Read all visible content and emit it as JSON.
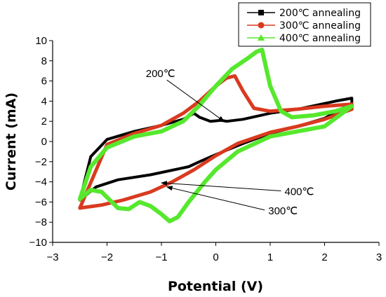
{
  "chart_data": {
    "type": "line",
    "xlabel": "Potential (V)",
    "ylabel": "Current (mA)",
    "xlim": [
      -3,
      3
    ],
    "ylim": [
      -10,
      10
    ],
    "xticks": [
      "−3",
      "−2",
      "−1",
      "0",
      "1",
      "2",
      "3"
    ],
    "yticks": [
      "−10",
      "−8",
      "−6",
      "−4",
      "−2",
      "0",
      "2",
      "4",
      "6",
      "8",
      "10"
    ],
    "grid": false,
    "legend_position": "top-right",
    "series": [
      {
        "name": "200℃ annealing",
        "color": "#000000",
        "marker": "square",
        "x": [
          -2.5,
          -2.2,
          -1.8,
          -1.2,
          -0.5,
          -0.3,
          0.0,
          0.5,
          1.0,
          1.5,
          2.0,
          2.5,
          2.5,
          2.2,
          1.5,
          1.0,
          0.5,
          0.2,
          0.1,
          -0.1,
          -0.3,
          -0.4,
          -0.6,
          -1.0,
          -1.5,
          -2.0,
          -2.3,
          -2.5
        ],
        "y": [
          -5.8,
          -4.5,
          -3.8,
          -3.3,
          -2.5,
          -2.0,
          -1.3,
          -0.2,
          0.8,
          1.5,
          2.3,
          3.8,
          4.3,
          4.0,
          3.2,
          2.8,
          2.2,
          2.0,
          2.1,
          2.0,
          2.4,
          2.8,
          2.2,
          1.6,
          1.0,
          0.2,
          -1.5,
          -5.8
        ]
      },
      {
        "name": "300℃ annealing",
        "color": "#d93a1f",
        "marker": "circle",
        "x": [
          -2.5,
          -2.1,
          -1.7,
          -1.2,
          -0.8,
          -0.4,
          0.0,
          0.4,
          1.0,
          1.5,
          2.0,
          2.5,
          2.5,
          2.0,
          1.5,
          1.0,
          0.7,
          0.5,
          0.35,
          0.2,
          0.0,
          -0.3,
          -0.6,
          -1.0,
          -1.5,
          -2.0,
          -2.5
        ],
        "y": [
          -6.6,
          -6.3,
          -5.8,
          -5.0,
          -4.0,
          -2.8,
          -1.4,
          -0.2,
          0.9,
          1.5,
          2.2,
          3.2,
          3.7,
          3.5,
          3.2,
          3.0,
          3.3,
          5.0,
          6.5,
          6.3,
          5.5,
          4.0,
          2.8,
          1.6,
          0.8,
          -0.3,
          -6.6
        ]
      },
      {
        "name": "400℃ annealing",
        "color": "#56e82d",
        "marker": "triangle",
        "x": [
          -2.5,
          -2.3,
          -2.1,
          -1.8,
          -1.6,
          -1.4,
          -1.2,
          -1.0,
          -0.85,
          -0.7,
          -0.5,
          -0.2,
          0.0,
          0.4,
          1.0,
          1.5,
          2.0,
          2.5,
          2.5,
          2.2,
          1.8,
          1.4,
          1.2,
          1.0,
          0.85,
          0.75,
          0.6,
          0.3,
          0.0,
          -0.3,
          -0.6,
          -1.0,
          -1.5,
          -2.0,
          -2.3,
          -2.5
        ],
        "y": [
          -5.7,
          -4.8,
          -5.0,
          -6.6,
          -6.7,
          -6.0,
          -6.4,
          -7.2,
          -7.9,
          -7.5,
          -6.0,
          -4.0,
          -2.8,
          -1.0,
          0.5,
          1.0,
          1.5,
          3.5,
          3.5,
          3.0,
          2.6,
          2.4,
          3.0,
          5.5,
          9.1,
          8.9,
          8.3,
          7.2,
          5.5,
          3.6,
          2.0,
          1.0,
          0.5,
          -0.6,
          -2.5,
          -5.7
        ]
      }
    ],
    "annotations": [
      {
        "text": "200℃",
        "arrow_from": [
          -0.9,
          6.1
        ],
        "arrow_to": [
          0.15,
          2.0
        ]
      },
      {
        "text": "400℃",
        "arrow_from": [
          1.2,
          -4.9
        ],
        "arrow_to": [
          -1.0,
          -4.1
        ]
      },
      {
        "text": "300℃",
        "arrow_from": [
          0.9,
          -6.8
        ],
        "arrow_to": [
          -0.9,
          -4.5
        ]
      }
    ]
  }
}
